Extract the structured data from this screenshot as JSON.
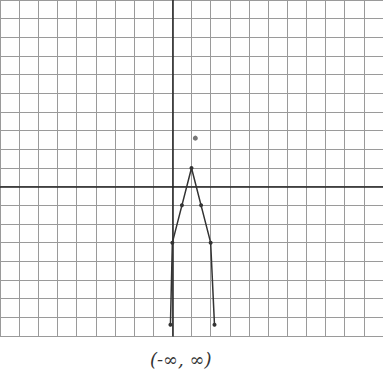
{
  "chart_data": {
    "type": "line",
    "annotation": "(-∞, ∞)",
    "series": [
      {
        "type": "line",
        "color": "#333333",
        "marker": "circle",
        "line_style": "solid",
        "x": [
          -0.1,
          0,
          0.5,
          1,
          1.5,
          2,
          2.2
        ],
        "values": [
          -7.4,
          -3,
          -1,
          1,
          -1,
          -3,
          -7.4
        ]
      },
      {
        "type": "scatter",
        "color": "#555555",
        "marker": "circle",
        "x": [
          1.2
        ],
        "values": [
          2.6
        ]
      }
    ],
    "xlim": [
      -9,
      11
    ],
    "xticks": [
      -9,
      -8,
      -7,
      -6,
      -5,
      -4,
      -3,
      -2,
      -1,
      0,
      1,
      2,
      3,
      4,
      5,
      6,
      7,
      8,
      9,
      10,
      11
    ],
    "ylim": [
      -8,
      10
    ],
    "yticks": [
      -8,
      -7,
      -6,
      -5,
      -4,
      -3,
      -2,
      -1,
      0,
      1,
      2,
      3,
      4,
      5,
      6,
      7,
      8,
      9,
      10
    ],
    "grid": true,
    "tick_labels": false
  }
}
